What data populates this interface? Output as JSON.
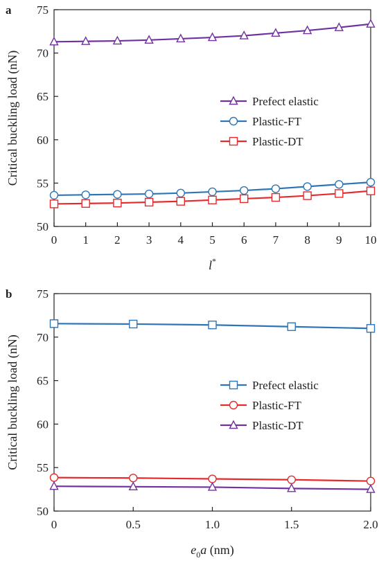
{
  "chart_data": [
    {
      "type": "line",
      "panel_label": "a",
      "xlabel": "l",
      "xlabel_sup": "*",
      "ylabel": "Critical buckling load (nN)",
      "xlim": [
        0,
        10
      ],
      "ylim": [
        50,
        75
      ],
      "xticks": [
        "0",
        "1",
        "2",
        "3",
        "4",
        "5",
        "6",
        "7",
        "8",
        "9",
        "10"
      ],
      "yticks": [
        "50",
        "55",
        "60",
        "65",
        "70",
        "75"
      ],
      "grid": false,
      "legend_position": "center-right",
      "x": [
        0,
        1,
        2,
        3,
        4,
        5,
        6,
        7,
        8,
        9,
        10
      ],
      "series": [
        {
          "name": "Prefect elastic",
          "marker": "triangle",
          "color": "#7030A0",
          "values": [
            71.3,
            71.35,
            71.4,
            71.5,
            71.65,
            71.8,
            72.0,
            72.3,
            72.6,
            72.95,
            73.35
          ]
        },
        {
          "name": "Plastic-FT",
          "marker": "circle",
          "color": "#2E75B6",
          "values": [
            53.6,
            53.65,
            53.7,
            53.75,
            53.85,
            54.0,
            54.15,
            54.35,
            54.6,
            54.85,
            55.1
          ]
        },
        {
          "name": "Plastic-DT",
          "marker": "square",
          "color": "#E8292C",
          "values": [
            52.6,
            52.65,
            52.7,
            52.8,
            52.9,
            53.05,
            53.2,
            53.35,
            53.55,
            53.8,
            54.1
          ]
        }
      ]
    },
    {
      "type": "line",
      "panel_label": "b",
      "xlabel_parts": [
        "e",
        "0",
        "a",
        " (nm)"
      ],
      "ylabel": "Critical buckling load (nN)",
      "xlim": [
        0,
        2
      ],
      "ylim": [
        50,
        75
      ],
      "xticks": [
        "0",
        "0.5",
        "1.0",
        "1.5",
        "2.0"
      ],
      "yticks": [
        "50",
        "55",
        "60",
        "65",
        "70",
        "75"
      ],
      "grid": false,
      "legend_position": "center-right",
      "x": [
        0,
        0.5,
        1.0,
        1.5,
        2.0
      ],
      "series": [
        {
          "name": "Prefect elastic",
          "marker": "square",
          "color": "#2E75B6",
          "values": [
            71.55,
            71.5,
            71.4,
            71.2,
            71.0
          ]
        },
        {
          "name": "Plastic-FT",
          "marker": "circle",
          "color": "#E8292C",
          "values": [
            53.85,
            53.8,
            53.7,
            53.6,
            53.45
          ]
        },
        {
          "name": "Plastic-DT",
          "marker": "triangle",
          "color": "#7030A0",
          "values": [
            52.85,
            52.8,
            52.75,
            52.6,
            52.5
          ]
        }
      ]
    }
  ]
}
